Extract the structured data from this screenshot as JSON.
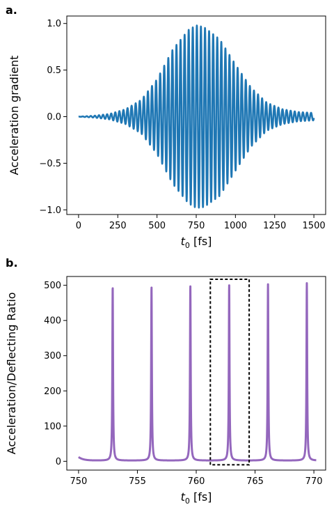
{
  "panels": {
    "a": {
      "label": "a."
    },
    "b": {
      "label": "b."
    }
  },
  "chart_data": [
    {
      "type": "line",
      "panel": "a.",
      "title": "",
      "xlabel": "t0 [fs]",
      "xlabel_main": "t",
      "xlabel_sub": "0",
      "xlabel_unit": " [fs]",
      "ylabel": "Acceleration gradient",
      "xlim": [
        -75,
        1575
      ],
      "ylim": [
        -1.05,
        1.08
      ],
      "xticks": [
        0,
        250,
        500,
        750,
        1000,
        1250,
        1500
      ],
      "yticks": [
        -1.0,
        -0.5,
        0.0,
        0.5,
        1.0
      ],
      "ytick_labels": [
        "−1.0",
        "−0.5",
        "0.0",
        "0.5",
        "1.0"
      ],
      "series": [
        {
          "color": "#1f77b4",
          "kind": "oscillation-envelope",
          "x_start": 0,
          "x_end": 1500,
          "oscillation_period_fs": 26,
          "envelope": {
            "x": [
              0,
              100,
              200,
              300,
              400,
              500,
              600,
              700,
              750,
              800,
              900,
              1000,
              1100,
              1200,
              1300,
              1400,
              1500
            ],
            "upper": [
              0.0,
              0.01,
              0.03,
              0.08,
              0.18,
              0.4,
              0.72,
              0.93,
              0.98,
              0.96,
              0.83,
              0.56,
              0.31,
              0.15,
              0.08,
              0.05,
              0.04
            ],
            "lower": [
              0.0,
              -0.01,
              -0.03,
              -0.08,
              -0.18,
              -0.4,
              -0.72,
              -0.93,
              -0.98,
              -0.97,
              -0.85,
              -0.58,
              -0.32,
              -0.15,
              -0.08,
              -0.05,
              -0.04
            ]
          }
        }
      ],
      "grid": false
    },
    {
      "type": "line",
      "panel": "b.",
      "title": "",
      "xlabel": "t0 [fs]",
      "xlabel_main": "t",
      "xlabel_sub": "0",
      "xlabel_unit": " [fs]",
      "ylabel": "Acceleration/Deflecting Ratio",
      "xlim": [
        749,
        771
      ],
      "ylim": [
        -25,
        525
      ],
      "xticks": [
        750,
        755,
        760,
        765,
        770
      ],
      "yticks": [
        0,
        100,
        200,
        300,
        400,
        500
      ],
      "series": [
        {
          "color": "#9467bd",
          "kind": "periodic-peaks",
          "x_start": 750,
          "x_end": 770.2,
          "baseline": 2,
          "peak_x": [
            752.9,
            756.2,
            759.5,
            762.8,
            766.1,
            769.4
          ],
          "peak_y": [
            495,
            495,
            497,
            499,
            501,
            504
          ]
        }
      ],
      "annotation": {
        "type": "dashed-box",
        "x_range": [
          761.2,
          764.5
        ],
        "y_range": [
          -10,
          517
        ]
      },
      "grid": false
    }
  ]
}
